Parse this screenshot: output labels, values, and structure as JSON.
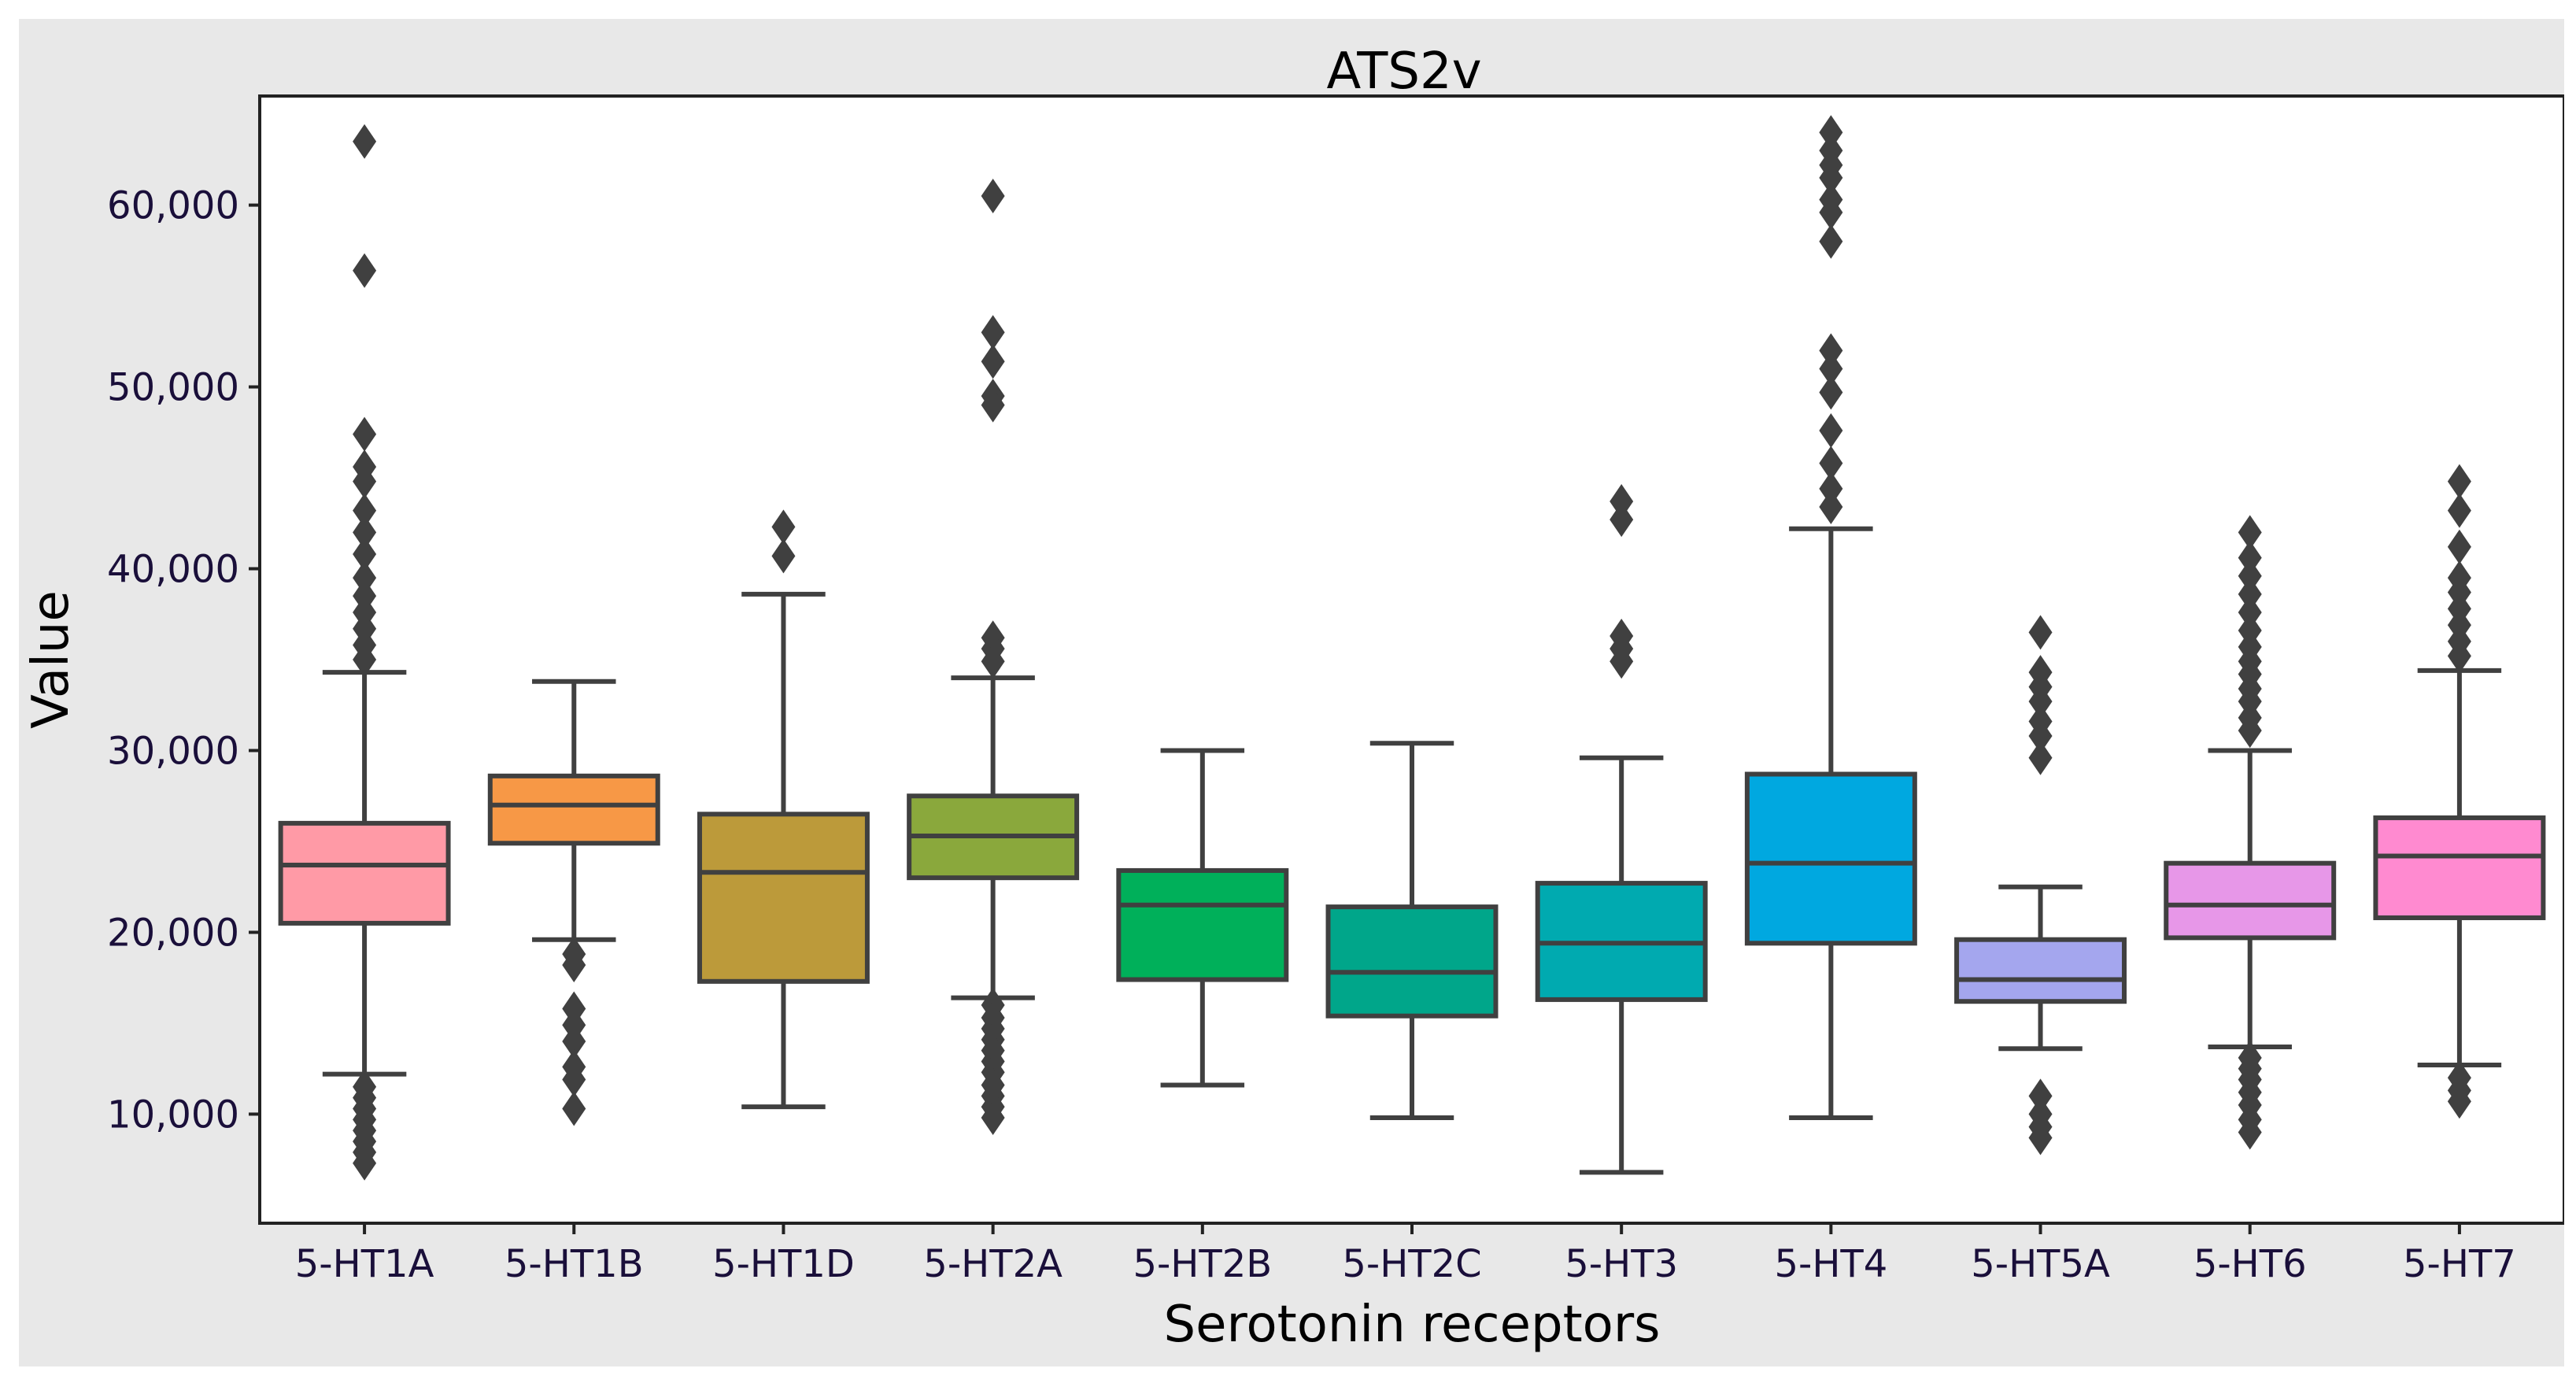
{
  "chart_data": {
    "type": "box",
    "title": "ATS2v",
    "xlabel": "Serotonin receptors",
    "ylabel": "Value",
    "ylim": [
      4000,
      66000
    ],
    "yticks": [
      10000,
      20000,
      30000,
      40000,
      50000,
      60000
    ],
    "ytick_labels": [
      "10,000",
      "20,000",
      "30,000",
      "40,000",
      "50,000",
      "60,000"
    ],
    "categories": [
      "5-HT1A",
      "5-HT1B",
      "5-HT1D",
      "5-HT2A",
      "5-HT2B",
      "5-HT2C",
      "5-HT3",
      "5-HT4",
      "5-HT5A",
      "5-HT6",
      "5-HT7"
    ],
    "boxes": [
      {
        "name": "5-HT1A",
        "color": "#ff9aa6",
        "whisker_low": 12200,
        "q1": 20500,
        "median": 23700,
        "q3": 26000,
        "whisker_high": 34300,
        "outliers": [
          63500,
          56400,
          47400,
          45600,
          44800,
          43200,
          42000,
          40800,
          39500,
          38500,
          37600,
          36700,
          35800,
          35000,
          11500,
          10900,
          10300,
          9700,
          9100,
          8500,
          7900,
          7300
        ]
      },
      {
        "name": "5-HT1B",
        "color": "#f79846",
        "whisker_low": 19600,
        "q1": 24900,
        "median": 27000,
        "q3": 28600,
        "whisker_high": 33800,
        "outliers": [
          18800,
          18200,
          15800,
          14900,
          14000,
          12600,
          11900,
          10300
        ]
      },
      {
        "name": "5-HT1D",
        "color": "#bc9a3a",
        "whisker_low": 10400,
        "q1": 17300,
        "median": 23300,
        "q3": 26500,
        "whisker_high": 38600,
        "outliers": [
          42300,
          40700
        ]
      },
      {
        "name": "5-HT2A",
        "color": "#8aa83c",
        "whisker_low": 16400,
        "q1": 23000,
        "median": 25300,
        "q3": 27500,
        "whisker_high": 34000,
        "outliers": [
          60500,
          53000,
          51400,
          49500,
          49000,
          36200,
          35600,
          34900,
          16000,
          15300,
          14700,
          14100,
          13500,
          12900,
          12300,
          11600,
          11000,
          10400,
          9800
        ]
      },
      {
        "name": "5-HT2B",
        "color": "#00b05a",
        "whisker_low": 11600,
        "q1": 17400,
        "median": 21500,
        "q3": 23400,
        "whisker_high": 30000,
        "outliers": []
      },
      {
        "name": "5-HT2C",
        "color": "#00a68a",
        "whisker_low": 9800,
        "q1": 15400,
        "median": 17800,
        "q3": 21400,
        "whisker_high": 30400,
        "outliers": []
      },
      {
        "name": "5-HT3",
        "color": "#00aab0",
        "whisker_low": 6800,
        "q1": 16300,
        "median": 19400,
        "q3": 22700,
        "whisker_high": 29600,
        "outliers": [
          43700,
          42700,
          36300,
          35600,
          34900
        ]
      },
      {
        "name": "5-HT4",
        "color": "#00a8e0",
        "whisker_low": 9800,
        "q1": 19400,
        "median": 23800,
        "q3": 28700,
        "whisker_high": 42200,
        "outliers": [
          64000,
          63000,
          62200,
          61500,
          60300,
          59600,
          58000,
          52000,
          51000,
          49700,
          47600,
          45800,
          44400,
          43400
        ]
      },
      {
        "name": "5-HT5A",
        "color": "#a4a6ee",
        "whisker_low": 13600,
        "q1": 16200,
        "median": 17400,
        "q3": 19600,
        "whisker_high": 22500,
        "outliers": [
          36500,
          34300,
          33500,
          32700,
          31600,
          30800,
          29600,
          11000,
          10000,
          9300,
          8700
        ]
      },
      {
        "name": "5-HT6",
        "color": "#e797e8",
        "whisker_low": 13700,
        "q1": 19700,
        "median": 21500,
        "q3": 23800,
        "whisker_high": 30000,
        "outliers": [
          42000,
          40600,
          39600,
          38600,
          37600,
          36600,
          35700,
          34900,
          34200,
          33400,
          32700,
          31800,
          31100,
          13100,
          12500,
          11900,
          11200,
          10500,
          9700,
          9000
        ]
      },
      {
        "name": "5-HT7",
        "color": "#ff8ad0",
        "whisker_low": 12700,
        "q1": 20800,
        "median": 24200,
        "q3": 26300,
        "whisker_high": 34400,
        "outliers": [
          44800,
          43200,
          41200,
          39500,
          38700,
          37800,
          36900,
          36000,
          35200,
          12000,
          11300,
          10700
        ]
      }
    ]
  }
}
